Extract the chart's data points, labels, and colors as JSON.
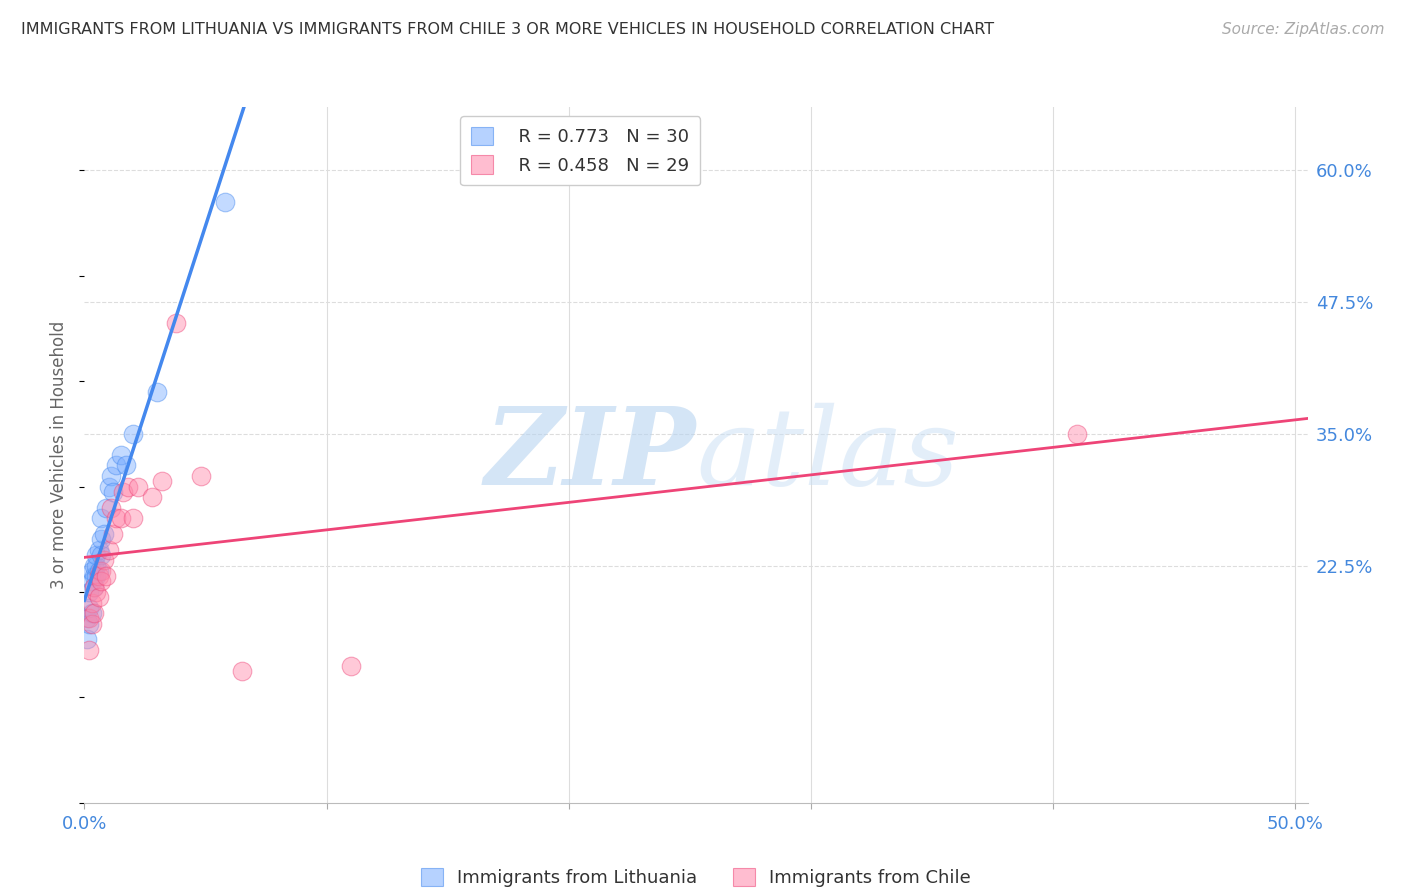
{
  "title": "IMMIGRANTS FROM LITHUANIA VS IMMIGRANTS FROM CHILE 3 OR MORE VEHICLES IN HOUSEHOLD CORRELATION CHART",
  "source": "Source: ZipAtlas.com",
  "ylabel": "3 or more Vehicles in Household",
  "xlim": [
    0.0,
    0.505
  ],
  "ylim": [
    0.0,
    0.66
  ],
  "xticks": [
    0.0,
    0.1,
    0.2,
    0.3,
    0.4,
    0.5
  ],
  "xticklabels": [
    "0.0%",
    "",
    "",
    "",
    "",
    "50.0%"
  ],
  "yticks_right": [
    0.225,
    0.35,
    0.475,
    0.6
  ],
  "yticklabels_right": [
    "22.5%",
    "35.0%",
    "47.5%",
    "60.0%"
  ],
  "legend_r1": "R = 0.773",
  "legend_n1": "N = 30",
  "legend_r2": "R = 0.458",
  "legend_n2": "N = 29",
  "legend_label1": "Immigrants from Lithuania",
  "legend_label2": "Immigrants from Chile",
  "color_lithuania": "#7aadff",
  "color_chile": "#ff88aa",
  "color_reg_lithuania": "#4488ee",
  "color_reg_chile": "#ee4477",
  "color_axis_labels": "#4488dd",
  "watermark_color": "#cce4f7",
  "grid_color": "#dddddd",
  "lithuania_x": [
    0.001,
    0.001,
    0.002,
    0.002,
    0.002,
    0.003,
    0.003,
    0.003,
    0.004,
    0.004,
    0.004,
    0.005,
    0.005,
    0.005,
    0.006,
    0.006,
    0.007,
    0.007,
    0.007,
    0.008,
    0.009,
    0.01,
    0.011,
    0.012,
    0.013,
    0.015,
    0.017,
    0.02,
    0.03,
    0.058
  ],
  "lithuania_y": [
    0.155,
    0.175,
    0.17,
    0.185,
    0.2,
    0.18,
    0.21,
    0.22,
    0.205,
    0.215,
    0.225,
    0.215,
    0.225,
    0.235,
    0.22,
    0.24,
    0.235,
    0.25,
    0.27,
    0.255,
    0.28,
    0.3,
    0.31,
    0.295,
    0.32,
    0.33,
    0.32,
    0.35,
    0.39,
    0.57
  ],
  "chile_x": [
    0.002,
    0.002,
    0.003,
    0.003,
    0.004,
    0.004,
    0.005,
    0.006,
    0.006,
    0.007,
    0.007,
    0.008,
    0.009,
    0.01,
    0.011,
    0.012,
    0.013,
    0.015,
    0.016,
    0.018,
    0.02,
    0.022,
    0.028,
    0.032,
    0.038,
    0.048,
    0.065,
    0.11,
    0.41
  ],
  "chile_y": [
    0.145,
    0.175,
    0.17,
    0.19,
    0.18,
    0.205,
    0.2,
    0.215,
    0.195,
    0.22,
    0.21,
    0.23,
    0.215,
    0.24,
    0.28,
    0.255,
    0.27,
    0.27,
    0.295,
    0.3,
    0.27,
    0.3,
    0.29,
    0.305,
    0.455,
    0.31,
    0.125,
    0.13,
    0.35
  ]
}
